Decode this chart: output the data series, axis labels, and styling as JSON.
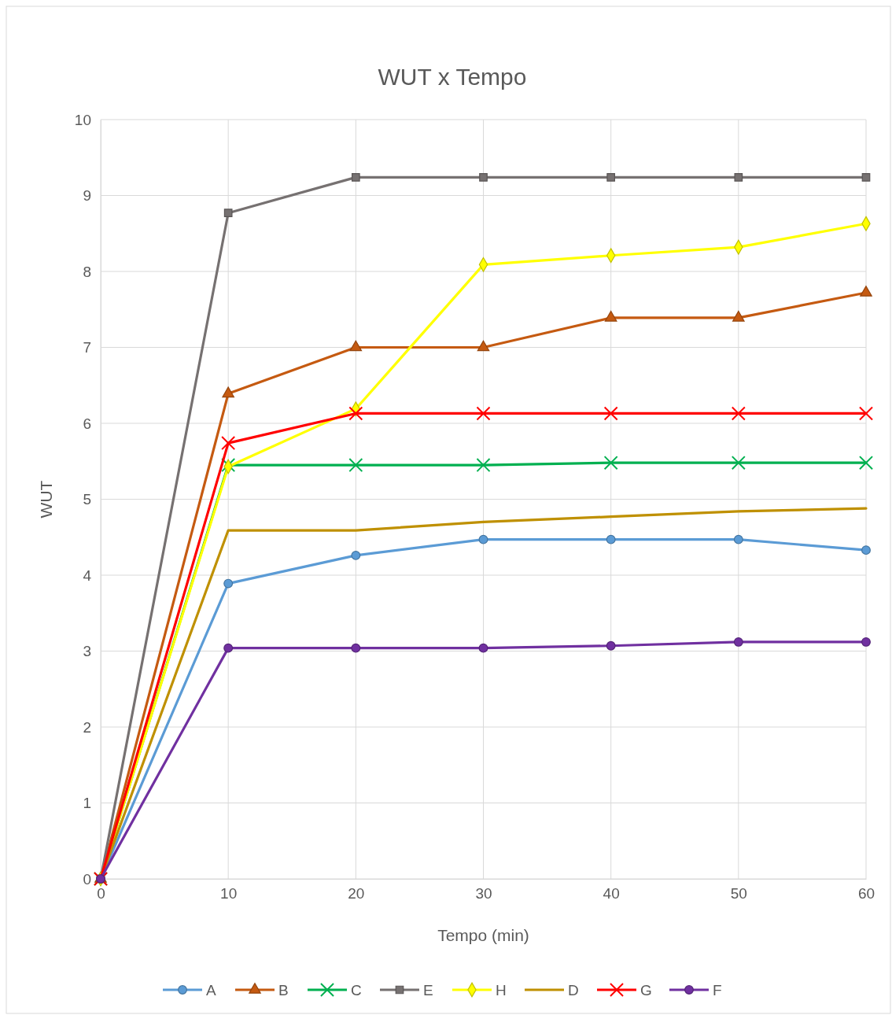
{
  "chart_data": {
    "type": "line",
    "title": "WUT x Tempo",
    "xlabel": "Tempo (min)",
    "ylabel": "WUT",
    "x": [
      0,
      10,
      20,
      30,
      40,
      50,
      60
    ],
    "xlim": [
      0,
      60
    ],
    "xticks": [
      0,
      10,
      20,
      30,
      40,
      50,
      60
    ],
    "ylim": [
      0,
      10
    ],
    "yticks": [
      0,
      1,
      2,
      3,
      4,
      5,
      6,
      7,
      8,
      9,
      10
    ],
    "grid": true,
    "legend": "bottom",
    "series": [
      {
        "name": "A",
        "color": "#5b9bd5",
        "marker": "circle",
        "values": [
          0,
          3.89,
          4.26,
          4.47,
          4.47,
          4.47,
          4.33
        ]
      },
      {
        "name": "B",
        "color": "#c55a11",
        "marker": "triangle",
        "values": [
          0,
          6.39,
          7.0,
          7.0,
          7.39,
          7.39,
          7.72
        ]
      },
      {
        "name": "C",
        "color": "#00b050",
        "marker": "cross",
        "values": [
          0,
          5.45,
          5.45,
          5.45,
          5.48,
          5.48,
          5.48
        ]
      },
      {
        "name": "E",
        "color": "#767171",
        "marker": "square",
        "values": [
          0,
          8.77,
          9.24,
          9.24,
          9.24,
          9.24,
          9.24
        ]
      },
      {
        "name": "H",
        "color": "#ffff00",
        "marker": "diamond",
        "values": [
          0,
          5.43,
          6.19,
          8.09,
          8.21,
          8.32,
          8.63
        ]
      },
      {
        "name": "D",
        "color": "#bf9000",
        "marker": "none",
        "values": [
          0,
          4.59,
          4.59,
          4.7,
          4.77,
          4.84,
          4.88
        ]
      },
      {
        "name": "G",
        "color": "#ff0000",
        "marker": "cross",
        "values": [
          0,
          5.74,
          6.13,
          6.13,
          6.13,
          6.13,
          6.13
        ]
      },
      {
        "name": "F",
        "color": "#7030a0",
        "marker": "circle",
        "values": [
          0,
          3.04,
          3.04,
          3.04,
          3.07,
          3.12,
          3.12
        ]
      }
    ]
  }
}
